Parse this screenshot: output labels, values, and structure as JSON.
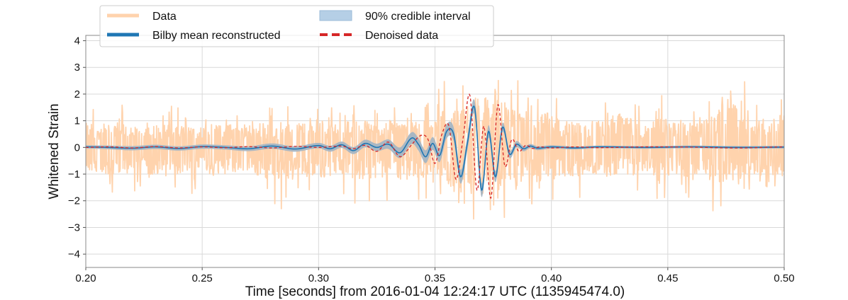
{
  "chart_data": {
    "type": "line",
    "title": "",
    "xlabel": "Time [seconds] from 2016-01-04 12:24:17 UTC (1135945474.0)",
    "ylabel": "Whitened Strain",
    "xlim": [
      0.2,
      0.5
    ],
    "ylim": [
      -4.5,
      4.2
    ],
    "xticks": [
      0.2,
      0.25,
      0.3,
      0.35,
      0.4,
      0.45,
      0.5
    ],
    "xtick_labels": [
      "0.20",
      "0.25",
      "0.30",
      "0.35",
      "0.40",
      "0.45",
      "0.50"
    ],
    "yticks": [
      -4,
      -3,
      -2,
      -1,
      0,
      1,
      2,
      3,
      4
    ],
    "ytick_labels": [
      "−4",
      "−3",
      "−2",
      "−1",
      "0",
      "1",
      "2",
      "3",
      "4"
    ],
    "grid": true,
    "legend": {
      "placement": "top-left",
      "entries": [
        {
          "label": "Data",
          "color": "#ffd3ad",
          "style": "thick-line"
        },
        {
          "label": "90% credible interval",
          "color": "#b5cfe6",
          "style": "patch"
        },
        {
          "label": "Bilby mean reconstructed",
          "color": "#1f77b4",
          "style": "thick-line"
        },
        {
          "label": "Denoised data",
          "color": "#d62728",
          "style": "dashed-line"
        }
      ]
    },
    "series": [
      {
        "name": "Data",
        "color": "#ffd3ad",
        "x": [
          0.2,
          0.206,
          0.212,
          0.218,
          0.224,
          0.23,
          0.236,
          0.242,
          0.248,
          0.254,
          0.26,
          0.266,
          0.272,
          0.278,
          0.284,
          0.29,
          0.296,
          0.302,
          0.308,
          0.314,
          0.32,
          0.326,
          0.332,
          0.338,
          0.344,
          0.35,
          0.356,
          0.362,
          0.368,
          0.374,
          0.38,
          0.386,
          0.392,
          0.398,
          0.404,
          0.41,
          0.416,
          0.422,
          0.428,
          0.434,
          0.44,
          0.446,
          0.452,
          0.458,
          0.464,
          0.47,
          0.476,
          0.482,
          0.488,
          0.494,
          0.5
        ],
        "y_upper": [
          2.1,
          1.5,
          1.8,
          1.6,
          1.2,
          1.5,
          1.7,
          1.4,
          1.3,
          1.6,
          1.5,
          1.7,
          1.8,
          1.6,
          1.4,
          1.7,
          2.0,
          1.8,
          1.6,
          1.9,
          1.9,
          1.5,
          2.0,
          1.6,
          1.8,
          2.0,
          2.9,
          2.5,
          3.7,
          3.3,
          3.1,
          2.9,
          2.2,
          2.4,
          1.9,
          1.7,
          1.6,
          1.8,
          2.4,
          2.0,
          1.4,
          2.0,
          1.9,
          1.7,
          1.8,
          2.2,
          3.4,
          2.7,
          2.2,
          2.0,
          2.2
        ],
        "y_lower": [
          -1.5,
          -1.9,
          -1.8,
          -1.7,
          -1.6,
          -2.2,
          -2.0,
          -1.7,
          -1.8,
          -1.9,
          -2.1,
          -1.6,
          -1.8,
          -2.2,
          -2.4,
          -1.8,
          -2.0,
          -2.2,
          -1.7,
          -2.0,
          -2.6,
          -1.9,
          -2.4,
          -2.0,
          -2.0,
          -2.2,
          -2.5,
          -4.4,
          -3.1,
          -4.4,
          -2.7,
          -2.9,
          -2.1,
          -2.9,
          -1.9,
          -2.1,
          -1.7,
          -2.1,
          -1.8,
          -2.0,
          -1.6,
          -2.2,
          -1.9,
          -2.1,
          -1.7,
          -2.5,
          -2.2,
          -2.7,
          -1.9,
          -2.0,
          -2.1
        ]
      },
      {
        "name": "90% credible interval",
        "color": "#b5cfe6",
        "x": [
          0.2,
          0.22,
          0.24,
          0.26,
          0.28,
          0.29,
          0.3,
          0.31,
          0.32,
          0.325,
          0.33,
          0.335,
          0.34,
          0.345,
          0.35,
          0.355,
          0.36,
          0.365,
          0.37,
          0.375,
          0.38,
          0.385,
          0.39,
          0.4,
          0.42,
          0.45,
          0.5
        ],
        "halfwidth": [
          0.06,
          0.08,
          0.08,
          0.08,
          0.1,
          0.1,
          0.1,
          0.12,
          0.14,
          0.14,
          0.18,
          0.2,
          0.22,
          0.24,
          0.24,
          0.26,
          0.26,
          0.26,
          0.26,
          0.22,
          0.16,
          0.12,
          0.08,
          0.06,
          0.05,
          0.05,
          0.05
        ]
      },
      {
        "name": "Bilby mean reconstructed",
        "color": "#1f77b4",
        "x": [
          0.2,
          0.21,
          0.22,
          0.23,
          0.24,
          0.25,
          0.26,
          0.27,
          0.28,
          0.29,
          0.3,
          0.305,
          0.31,
          0.315,
          0.32,
          0.325,
          0.33,
          0.335,
          0.34,
          0.343,
          0.346,
          0.349,
          0.352,
          0.355,
          0.358,
          0.361,
          0.364,
          0.367,
          0.37,
          0.373,
          0.376,
          0.379,
          0.382,
          0.385,
          0.388,
          0.391,
          0.394,
          0.4,
          0.41,
          0.42,
          0.44,
          0.46,
          0.48,
          0.5
        ],
        "y": [
          0.02,
          0.0,
          -0.03,
          0.02,
          -0.04,
          0.03,
          0.0,
          -0.05,
          0.05,
          -0.06,
          0.07,
          -0.05,
          0.1,
          -0.12,
          0.15,
          0.0,
          0.12,
          -0.2,
          0.35,
          0.1,
          -0.35,
          0.15,
          -0.3,
          0.6,
          0.5,
          -1.1,
          0.2,
          1.5,
          -1.6,
          0.6,
          -1.1,
          0.75,
          -0.25,
          0.12,
          -0.05,
          0.05,
          -0.03,
          0.02,
          -0.02,
          0.02,
          0.0,
          0.02,
          0.0,
          0.01
        ]
      },
      {
        "name": "Denoised data",
        "color": "#d62728",
        "x": [
          0.2,
          0.21,
          0.22,
          0.23,
          0.24,
          0.25,
          0.26,
          0.27,
          0.28,
          0.29,
          0.3,
          0.31,
          0.315,
          0.32,
          0.325,
          0.33,
          0.335,
          0.34,
          0.344,
          0.347,
          0.35,
          0.353,
          0.356,
          0.359,
          0.362,
          0.365,
          0.368,
          0.371,
          0.374,
          0.377,
          0.38,
          0.383,
          0.386,
          0.389,
          0.392,
          0.395,
          0.4,
          0.41,
          0.42,
          0.44,
          0.46,
          0.48,
          0.5
        ],
        "y": [
          0.0,
          0.02,
          -0.02,
          0.03,
          -0.02,
          0.02,
          -0.01,
          0.03,
          -0.02,
          0.04,
          0.0,
          0.05,
          -0.05,
          0.08,
          -0.15,
          0.2,
          -0.35,
          0.1,
          0.45,
          0.3,
          -0.6,
          0.5,
          0.8,
          -1.2,
          0.3,
          1.95,
          -1.6,
          0.8,
          -1.9,
          1.6,
          -0.7,
          0.3,
          -0.15,
          0.08,
          -0.04,
          0.02,
          -0.02,
          0.02,
          -0.01,
          0.02,
          0.01,
          -0.02,
          0.02
        ]
      }
    ]
  }
}
